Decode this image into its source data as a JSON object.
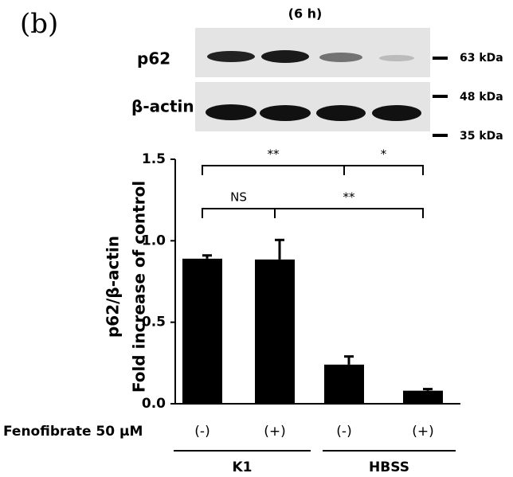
{
  "panel_label": "(b)",
  "blot": {
    "time": "(6 h)",
    "rows": [
      "p62",
      "β-actin"
    ],
    "markers": [
      "63 kDa",
      "48 kDa",
      "35 kDa"
    ]
  },
  "chart_data": {
    "type": "bar",
    "categories": [
      "(-)",
      "(+)",
      "(-)",
      "(+)"
    ],
    "values": [
      0.89,
      0.885,
      0.24,
      0.08
    ],
    "errors": [
      0.02,
      0.12,
      0.05,
      0.01
    ],
    "color": "#000000",
    "ylim": [
      0,
      1.5
    ],
    "yticks": [
      {
        "value": 0,
        "label": "0.0"
      },
      0.5,
      {
        "value": 1,
        "label": "1.0"
      },
      {
        "value": 1.5,
        "label": "1.5"
      }
    ],
    "y_label": [
      "p62/β-actin",
      "Fold  increase of control"
    ],
    "x_row_label": "Fenofibrate  50 μM",
    "groups": [
      "K1",
      "HBSS"
    ],
    "significance": [
      "**",
      "*",
      "NS",
      "**"
    ]
  }
}
